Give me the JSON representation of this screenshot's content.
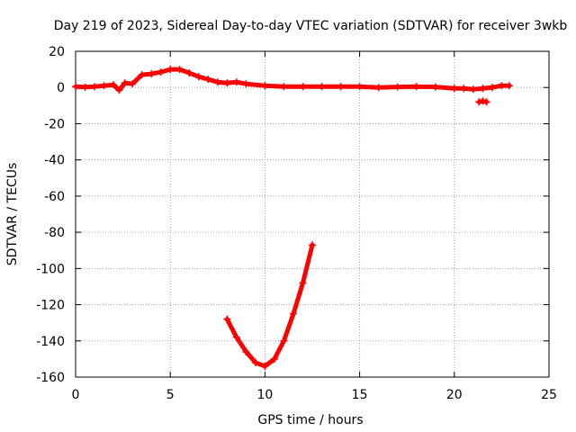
{
  "chart_data": {
    "type": "scatter",
    "title": "Day 219 of 2023, Sidereal Day-to-day VTEC variation (SDTVAR) for receiver 3wkb",
    "xlabel": "GPS time / hours",
    "ylabel": "SDTVAR / TECUs",
    "xlim": [
      0,
      25
    ],
    "ylim": [
      -160,
      20
    ],
    "xticks": [
      0,
      5,
      10,
      15,
      20,
      25
    ],
    "yticks": [
      20,
      0,
      -20,
      -40,
      -60,
      -80,
      -100,
      -120,
      -140,
      -160
    ],
    "grid": true,
    "marker": "plus",
    "series_color": "#ff0000",
    "series": [
      {
        "name": "main_track",
        "points": [
          [
            0.0,
            0.5
          ],
          [
            0.5,
            0.2
          ],
          [
            1.0,
            0.5
          ],
          [
            1.5,
            1.0
          ],
          [
            2.0,
            1.5
          ],
          [
            2.3,
            -1.5
          ],
          [
            2.6,
            2.5
          ],
          [
            3.0,
            2.0
          ],
          [
            3.5,
            7.0
          ],
          [
            4.0,
            7.5
          ],
          [
            4.5,
            8.5
          ],
          [
            5.0,
            10.0
          ],
          [
            5.5,
            10.0
          ],
          [
            6.0,
            8.0
          ],
          [
            6.5,
            6.0
          ],
          [
            7.0,
            4.5
          ],
          [
            7.5,
            3.0
          ],
          [
            8.0,
            2.5
          ],
          [
            8.5,
            3.0
          ],
          [
            9.0,
            2.0
          ],
          [
            10.0,
            1.0
          ],
          [
            11.0,
            0.5
          ],
          [
            12.0,
            0.5
          ],
          [
            13.0,
            0.5
          ],
          [
            14.0,
            0.5
          ],
          [
            15.0,
            0.5
          ],
          [
            16.0,
            0.0
          ],
          [
            17.0,
            0.3
          ],
          [
            18.0,
            0.5
          ],
          [
            19.0,
            0.3
          ],
          [
            20.0,
            -0.5
          ],
          [
            20.5,
            -0.5
          ],
          [
            21.0,
            -1.0
          ],
          [
            21.5,
            -0.5
          ],
          [
            22.0,
            0.0
          ],
          [
            22.5,
            1.0
          ],
          [
            22.9,
            1.0
          ]
        ]
      },
      {
        "name": "offset_segment",
        "points": [
          [
            21.3,
            -8.0
          ],
          [
            21.5,
            -7.5
          ],
          [
            21.7,
            -8.0
          ]
        ]
      },
      {
        "name": "deep_dip",
        "points": [
          [
            8.0,
            -128
          ],
          [
            8.5,
            -138
          ],
          [
            9.0,
            -146
          ],
          [
            9.5,
            -152
          ],
          [
            10.0,
            -154
          ],
          [
            10.5,
            -150
          ],
          [
            11.0,
            -140
          ],
          [
            11.5,
            -125
          ],
          [
            12.0,
            -108
          ],
          [
            12.5,
            -87
          ]
        ]
      }
    ]
  }
}
